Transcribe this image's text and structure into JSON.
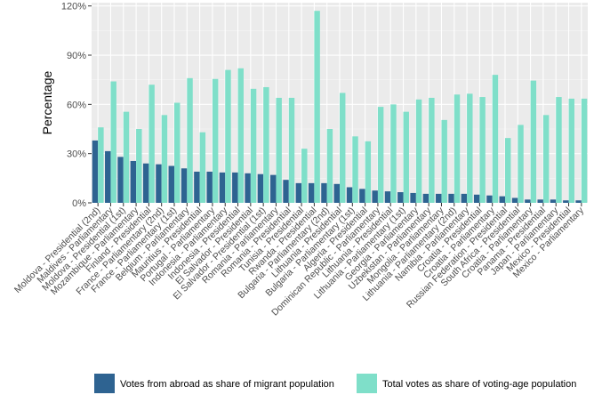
{
  "chart_data": {
    "type": "bar",
    "ylabel": "Percentage",
    "ylim": [
      0,
      122
    ],
    "yticks": [
      0,
      30,
      60,
      90,
      120
    ],
    "ytick_labels": [
      "0%",
      "30%",
      "60%",
      "90%",
      "120%"
    ],
    "grid": true,
    "legend_position": "bottom",
    "categories": [
      "Moldova - Presidential (2nd)",
      "Maldives - Parliamentary",
      "Moldova - Presidential (1st)",
      "Mozambique - Parliamentary",
      "Finland - Presidential",
      "France - Parliamentary (2nd)",
      "France - Parliamentary (1st)",
      "Belgium - Parliamentary",
      "Mauritius - Presidential",
      "Portugal - Parliamentary",
      "Indonesia - Parliamentary",
      "Indonesia - Presidential",
      "El Salvador - Presidential",
      "El Salvador - Presidential (1st)",
      "Romania - Parliamentary",
      "Romania - Presidential",
      "Tunisia - Presidential",
      "Rwanda - Presidential",
      "Bulgaria - Parliamentary (2nd)",
      "Lithuania - Presidential",
      "Bulgaria - Parliamentary (1st)",
      "Algeria - Presidential",
      "Dominican Republic - Parliamentary",
      "Lithuania - Presidential",
      "Lithuania - Parliamentary (1st)",
      "Georgia - Parliamentary",
      "Uzbekistan - Parliamentary",
      "Mongolia - Parliamentary",
      "Lithuania - Parliamentary (2nd)",
      "Namibia - Parliamentary",
      "Croatia - Presidential",
      "Croatia - Parliamentary",
      "Russian Federation - Presidential",
      "South Africa - Presidential",
      "Croatia - Parliamentary",
      "Panama - Presidential",
      "Japan - Parliamentary",
      "Mexico - Presidential",
      "Mexico - Parliamentary"
    ],
    "series": [
      {
        "name": "Votes from abroad as share of migrant population",
        "color": "#2e6391",
        "values": [
          38,
          31.5,
          28,
          25.5,
          24,
          23.5,
          22.5,
          21,
          19,
          19,
          18.5,
          18.5,
          18,
          17.5,
          17,
          14,
          12,
          12,
          12,
          11.5,
          9.5,
          8.5,
          7.5,
          7,
          6.5,
          6,
          5.5,
          5.5,
          5.5,
          5.5,
          5,
          4.5,
          4,
          3,
          2,
          2,
          2,
          1.5,
          1.5
        ]
      },
      {
        "name": "Total votes as share of voting-age population",
        "color": "#7fdfc9",
        "values": [
          46,
          74,
          55.5,
          45,
          72,
          53.5,
          61,
          76,
          43,
          75.5,
          81,
          82,
          69.5,
          70.5,
          64,
          64,
          33,
          117,
          45,
          67,
          40.5,
          37.5,
          58.5,
          60,
          55.5,
          63,
          64,
          50.5,
          66,
          66.5,
          64.5,
          78,
          39.5,
          47.5,
          74.5,
          53.5,
          64.5,
          63.5,
          63.5
        ]
      }
    ]
  }
}
